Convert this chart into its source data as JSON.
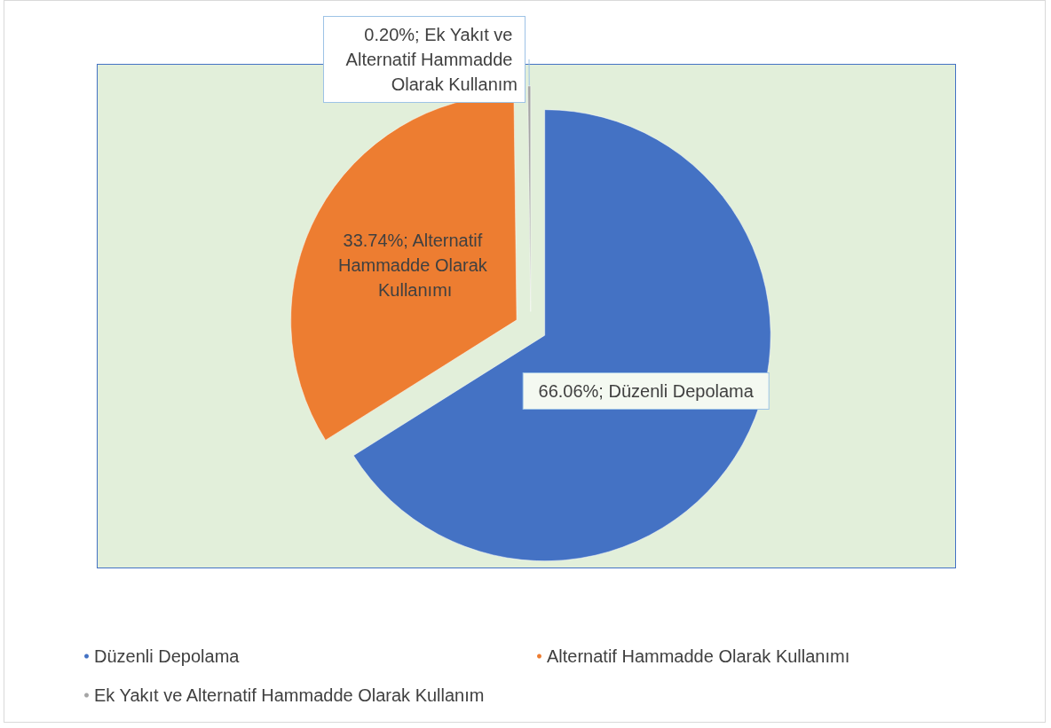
{
  "chart_data": {
    "type": "pie",
    "categories": [
      "Düzenli Depolama",
      "Alternatif Hammadde Olarak Kullanımı",
      "Ek Yakıt ve Alternatif Hammadde Olarak Kullanım"
    ],
    "values": [
      66.06,
      33.74,
      0.2
    ],
    "value_labels": [
      "66.06%; Düzenli Depolama",
      "33.74%; Alternatif Hammadde Olarak Kullanımı",
      "0.20%; Ek Yakıt ve Alternatif Hammadde Olarak Kullanım"
    ],
    "colors": [
      "#4472c4",
      "#ed7d31",
      "#a5a5a5"
    ],
    "legend": "bottom"
  }
}
